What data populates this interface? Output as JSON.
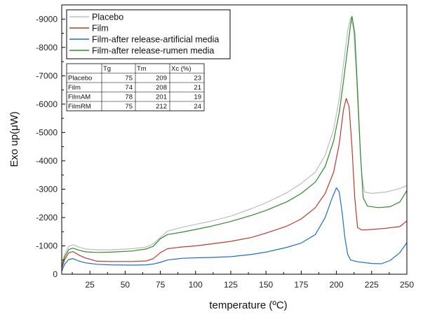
{
  "chart_data": {
    "type": "line",
    "title": "",
    "xlabel": "temperature (ºC)",
    "ylabel": "Exo up(μW)",
    "xlim": [
      5,
      250
    ],
    "ylim": [
      0,
      -9500
    ],
    "y_axis_inverted": true,
    "grid": false,
    "legend_position": "top-left",
    "x_ticks": [
      25,
      50,
      75,
      100,
      125,
      150,
      175,
      200,
      225,
      250
    ],
    "y_ticks": [
      0,
      -1000,
      -2000,
      -3000,
      -4000,
      -5000,
      -6000,
      -7000,
      -8000,
      -9000
    ],
    "series": [
      {
        "name": "Placebo",
        "color": "#bdbdbd",
        "points": [
          [
            5,
            -300
          ],
          [
            7,
            -700
          ],
          [
            10,
            -980
          ],
          [
            13,
            -1040
          ],
          [
            17,
            -960
          ],
          [
            22,
            -890
          ],
          [
            30,
            -860
          ],
          [
            40,
            -860
          ],
          [
            55,
            -900
          ],
          [
            65,
            -960
          ],
          [
            70,
            -1070
          ],
          [
            75,
            -1300
          ],
          [
            80,
            -1520
          ],
          [
            90,
            -1650
          ],
          [
            100,
            -1760
          ],
          [
            110,
            -1860
          ],
          [
            125,
            -2050
          ],
          [
            140,
            -2320
          ],
          [
            150,
            -2520
          ],
          [
            165,
            -2880
          ],
          [
            175,
            -3200
          ],
          [
            185,
            -3600
          ],
          [
            192,
            -4200
          ],
          [
            198,
            -5100
          ],
          [
            202,
            -6200
          ],
          [
            205,
            -7400
          ],
          [
            208,
            -8600
          ],
          [
            210,
            -9050
          ],
          [
            212,
            -8700
          ],
          [
            214,
            -7200
          ],
          [
            216,
            -5200
          ],
          [
            218,
            -3500
          ],
          [
            220,
            -2900
          ],
          [
            225,
            -2850
          ],
          [
            235,
            -2900
          ],
          [
            245,
            -3020
          ],
          [
            250,
            -3130
          ]
        ]
      },
      {
        "name": "Film",
        "color": "#c0392b",
        "points": [
          [
            5,
            -200
          ],
          [
            7,
            -500
          ],
          [
            10,
            -760
          ],
          [
            13,
            -800
          ],
          [
            17,
            -680
          ],
          [
            22,
            -570
          ],
          [
            30,
            -460
          ],
          [
            40,
            -450
          ],
          [
            55,
            -450
          ],
          [
            65,
            -470
          ],
          [
            70,
            -550
          ],
          [
            75,
            -760
          ],
          [
            80,
            -900
          ],
          [
            90,
            -960
          ],
          [
            100,
            -1000
          ],
          [
            110,
            -1060
          ],
          [
            125,
            -1160
          ],
          [
            140,
            -1300
          ],
          [
            150,
            -1450
          ],
          [
            165,
            -1700
          ],
          [
            175,
            -1950
          ],
          [
            185,
            -2350
          ],
          [
            192,
            -2850
          ],
          [
            198,
            -3600
          ],
          [
            202,
            -4600
          ],
          [
            205,
            -5800
          ],
          [
            207,
            -6200
          ],
          [
            209,
            -5900
          ],
          [
            211,
            -4500
          ],
          [
            213,
            -2700
          ],
          [
            215,
            -1650
          ],
          [
            218,
            -1560
          ],
          [
            225,
            -1580
          ],
          [
            235,
            -1620
          ],
          [
            245,
            -1680
          ],
          [
            250,
            -1880
          ]
        ]
      },
      {
        "name": "Film-after release-artificial media",
        "color": "#1f6fc5",
        "points": [
          [
            5,
            -100
          ],
          [
            7,
            -350
          ],
          [
            10,
            -520
          ],
          [
            13,
            -550
          ],
          [
            17,
            -470
          ],
          [
            22,
            -400
          ],
          [
            30,
            -350
          ],
          [
            40,
            -330
          ],
          [
            55,
            -320
          ],
          [
            65,
            -330
          ],
          [
            70,
            -360
          ],
          [
            75,
            -420
          ],
          [
            80,
            -500
          ],
          [
            90,
            -560
          ],
          [
            100,
            -580
          ],
          [
            110,
            -590
          ],
          [
            125,
            -620
          ],
          [
            140,
            -700
          ],
          [
            150,
            -780
          ],
          [
            165,
            -950
          ],
          [
            175,
            -1100
          ],
          [
            185,
            -1400
          ],
          [
            192,
            -2000
          ],
          [
            197,
            -2700
          ],
          [
            200,
            -3050
          ],
          [
            202,
            -2900
          ],
          [
            204,
            -2200
          ],
          [
            206,
            -1300
          ],
          [
            208,
            -700
          ],
          [
            210,
            -500
          ],
          [
            215,
            -440
          ],
          [
            225,
            -380
          ],
          [
            232,
            -370
          ],
          [
            238,
            -480
          ],
          [
            245,
            -760
          ],
          [
            250,
            -1120
          ]
        ]
      },
      {
        "name": "Film-after release-rumen media",
        "color": "#2e8b2e",
        "points": [
          [
            5,
            -250
          ],
          [
            7,
            -600
          ],
          [
            10,
            -870
          ],
          [
            13,
            -920
          ],
          [
            17,
            -850
          ],
          [
            22,
            -790
          ],
          [
            30,
            -770
          ],
          [
            40,
            -780
          ],
          [
            55,
            -820
          ],
          [
            65,
            -890
          ],
          [
            70,
            -990
          ],
          [
            75,
            -1250
          ],
          [
            80,
            -1400
          ],
          [
            90,
            -1480
          ],
          [
            100,
            -1580
          ],
          [
            110,
            -1680
          ],
          [
            125,
            -1860
          ],
          [
            140,
            -2080
          ],
          [
            150,
            -2250
          ],
          [
            165,
            -2560
          ],
          [
            175,
            -2850
          ],
          [
            185,
            -3250
          ],
          [
            192,
            -3800
          ],
          [
            198,
            -4700
          ],
          [
            202,
            -5700
          ],
          [
            205,
            -6800
          ],
          [
            208,
            -8000
          ],
          [
            210,
            -8800
          ],
          [
            211,
            -9100
          ],
          [
            213,
            -8500
          ],
          [
            215,
            -6500
          ],
          [
            217,
            -4300
          ],
          [
            219,
            -2700
          ],
          [
            222,
            -2400
          ],
          [
            230,
            -2350
          ],
          [
            238,
            -2380
          ],
          [
            245,
            -2550
          ],
          [
            250,
            -2950
          ]
        ]
      }
    ],
    "inset_table": {
      "headers": [
        "",
        "Tg",
        "Tm",
        "Xc (%)"
      ],
      "rows": [
        [
          "Placebo",
          "75",
          "209",
          "23"
        ],
        [
          "Film",
          "74",
          "208",
          "21"
        ],
        [
          "FilmAM",
          "78",
          "201",
          "19"
        ],
        [
          "FilmRM",
          "75",
          "212",
          "24"
        ]
      ]
    }
  }
}
